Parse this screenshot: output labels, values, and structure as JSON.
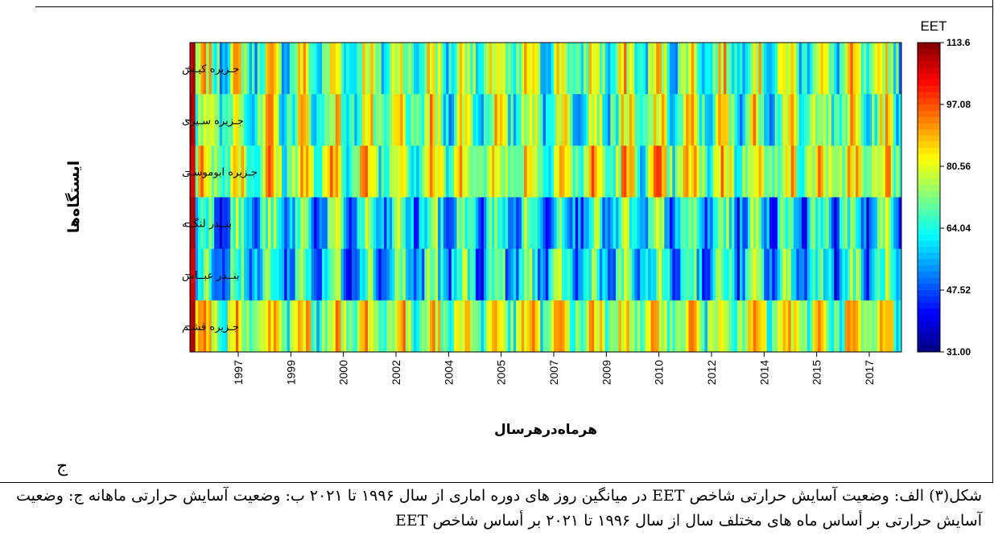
{
  "chart_data": {
    "type": "heatmap",
    "title": "",
    "xlabel": "هرماه‌درهرسال",
    "ylabel": "ایستگاه‌ها",
    "x_ticks": [
      "1997",
      "1999",
      "2000",
      "2002",
      "2004",
      "2005",
      "2007",
      "2009",
      "2010",
      "2012",
      "2014",
      "2015",
      "2017"
    ],
    "rows": [
      "جـزیره کیـش",
      "جـزیره سـیری",
      "جـزیره ابوموسـی",
      "بنــدر لنگــه",
      "بنــدر عبــاس",
      "جـزیره قشـم"
    ],
    "colorbar": {
      "label": "EET",
      "min": 31.0,
      "max": 113.6,
      "ticks": [
        "113.6",
        "97.08",
        "80.56",
        "64.04",
        "47.52",
        "31.00"
      ]
    },
    "grid": false
  },
  "figure_letter": "ج",
  "caption": "شکل(۳) الف: وضعیت آسایش حرارتی شاخص EET در میانگین روز های دوره اماری از سال ۱۹۹۶ تا ۲۰۲۱ ب: وضعیت آسایش حرارتی ماهانه ج: وضعیت آسایش حرارتی بر أساس ماه های مختلف سال از سال ۱۹۹۶ تا ۲۰۲۱ بر أساس شاخص EET"
}
